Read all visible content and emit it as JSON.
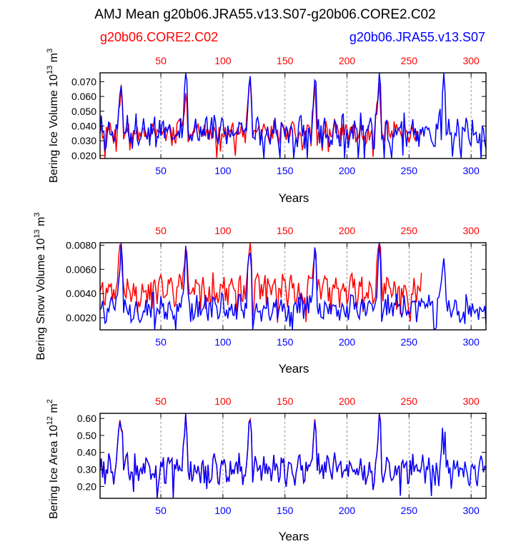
{
  "figure": {
    "title": "AMJ Mean g20b06.JRA55.v13.S07-g20b06.CORE2.C02",
    "legend_red": "g20b06.CORE2.C02",
    "legend_blue": "g20b06.JRA55.v13.S07",
    "colors": {
      "red": "#ff0000",
      "blue": "#0000ff",
      "frame": "#000000"
    }
  },
  "chart_data": [
    {
      "type": "line",
      "id": "ice-volume",
      "ylabel": "Bering Ice Volume 10",
      "ylabel_sup": "13",
      "ylabel_unit": " m",
      "ylabel_unit_sup": "3",
      "xlabel": "Years",
      "xlim": [
        1,
        312
      ],
      "ylim": [
        0.018,
        0.076
      ],
      "yticks": [
        0.02,
        0.03,
        0.04,
        0.05,
        0.06,
        0.07
      ],
      "yticklabels": [
        "0.020",
        "0.030",
        "0.040",
        "0.050",
        "0.060",
        "0.070"
      ],
      "xticks_bottom": [
        50,
        100,
        150,
        200,
        250,
        300
      ],
      "xticklabels_bottom": [
        "50",
        "100",
        "150",
        "200",
        "250",
        "300"
      ],
      "xticks_top": [
        50,
        100,
        150,
        200,
        250,
        300
      ],
      "xticklabels_top": [
        "50",
        "100",
        "150",
        "200",
        "250",
        "300"
      ],
      "grid_x": [
        50,
        100,
        150,
        200,
        250,
        300
      ],
      "series": [
        {
          "name": "g20b06.CORE2.C02",
          "color": "#ff0000",
          "x_end": 260,
          "base": 0.036,
          "amp": 0.006,
          "peak": 0.066,
          "seed": 7
        },
        {
          "name": "g20b06.JRA55.v13.S07",
          "color": "#0000ff",
          "x_end": 312,
          "base": 0.036,
          "amp": 0.009,
          "peak": 0.075,
          "seed": 3
        }
      ]
    },
    {
      "type": "line",
      "id": "snow-volume",
      "ylabel": "Bering Snow Volume 10",
      "ylabel_sup": "13",
      "ylabel_unit": " m",
      "ylabel_unit_sup": "3",
      "xlabel": "Years",
      "xlim": [
        1,
        312
      ],
      "ylim": [
        0.001,
        0.0082
      ],
      "yticks": [
        0.002,
        0.004,
        0.006,
        0.008
      ],
      "yticklabels": [
        "0.0020",
        "0.0040",
        "0.0060",
        "0.0080"
      ],
      "xticks_bottom": [
        50,
        100,
        150,
        200,
        250,
        300
      ],
      "xticklabels_bottom": [
        "50",
        "100",
        "150",
        "200",
        "250",
        "300"
      ],
      "xticks_top": [
        50,
        100,
        150,
        200,
        250,
        300
      ],
      "xticklabels_top": [
        "50",
        "100",
        "150",
        "200",
        "250",
        "300"
      ],
      "grid_x": [
        50,
        100,
        150,
        200,
        250,
        300
      ],
      "series": [
        {
          "name": "g20b06.CORE2.C02",
          "color": "#ff0000",
          "x_end": 260,
          "base": 0.0043,
          "amp": 0.001,
          "peak": 0.008,
          "seed": 11
        },
        {
          "name": "g20b06.JRA55.v13.S07",
          "color": "#0000ff",
          "x_end": 312,
          "base": 0.0028,
          "amp": 0.0009,
          "peak": 0.0078,
          "seed": 5
        }
      ]
    },
    {
      "type": "line",
      "id": "ice-area",
      "ylabel": "Bering Ice Area 10",
      "ylabel_sup": "12",
      "ylabel_unit": " m",
      "ylabel_unit_sup": "2",
      "xlabel": "Years",
      "xlim": [
        1,
        312
      ],
      "ylim": [
        0.13,
        0.63
      ],
      "yticks": [
        0.2,
        0.3,
        0.4,
        0.5,
        0.6
      ],
      "yticklabels": [
        "0.20",
        "0.30",
        "0.40",
        "0.50",
        "0.60"
      ],
      "xticks_bottom": [
        50,
        100,
        150,
        200,
        250,
        300
      ],
      "xticklabels_bottom": [
        "50",
        "100",
        "150",
        "200",
        "250",
        "300"
      ],
      "xticks_top": [
        50,
        100,
        150,
        200,
        250,
        300
      ],
      "xticklabels_top": [
        "50",
        "100",
        "150",
        "200",
        "250",
        "300"
      ],
      "grid_x": [
        50,
        100,
        150,
        200,
        250,
        300
      ],
      "series": [
        {
          "name": "g20b06.CORE2.C02",
          "color": "#ff0000",
          "x_end": 260,
          "base": 0.3,
          "amp": 0.07,
          "peak": 0.61,
          "seed": 13
        },
        {
          "name": "g20b06.JRA55.v13.S07",
          "color": "#0000ff",
          "x_end": 312,
          "base": 0.3,
          "amp": 0.07,
          "peak": 0.6,
          "seed": 13
        }
      ]
    }
  ]
}
